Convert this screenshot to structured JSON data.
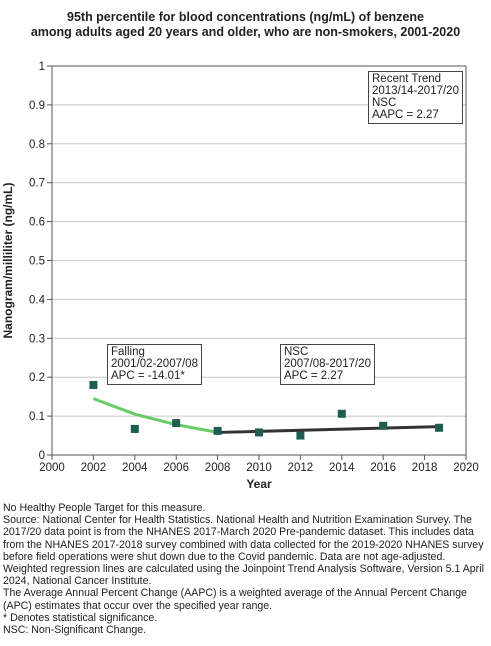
{
  "title_lines": [
    "95th percentile for blood concentrations (ng/mL) of benzene",
    "among adults aged 20 years and older, who are non-smokers, 2001-2020"
  ],
  "annotations": {
    "recent_trend": [
      "Recent Trend",
      "2013/14-2017/20",
      "NSC",
      "AAPC =  2.27"
    ],
    "falling": [
      "Falling",
      "2001/02-2007/08",
      "APC = -14.01*"
    ],
    "nsc": [
      "NSC",
      "2007/08-2017/20",
      "APC =  2.27"
    ]
  },
  "notes": [
    "No Healthy People Target for this measure.",
    "Source: National Center for Health Statistics. National Health and Nutrition Examination Survey. The 2017/20 data point is from the NHANES 2017-March 2020 Pre-pandemic dataset. This includes data from the NHANES 2017-2018 survey combined with data collected for the 2019-2020 NHANES survey before field operations were shut down due to the Covid pandemic. Data are not age-adjusted.",
    "Weighted regression lines are calculated using the Joinpoint Trend Analysis Software, Version 5.1 April 2024, National Cancer Institute.",
    "The Average Annual Percent Change (AAPC) is a weighted average of the Annual Percent Change (APC) estimates that occur over the specified year range.",
    "* Denotes statistical significance.",
    "NSC: Non-Significant Change."
  ],
  "chart_data": {
    "type": "scatter",
    "title": "95th percentile for blood concentrations (ng/mL) of benzene among adults aged 20 years and older, who are non-smokers, 2001-2020",
    "xlabel": "Year",
    "ylabel": "Nanogram/milliliter (ng/mL)",
    "xlim": [
      2000,
      2020
    ],
    "ylim": [
      0,
      1
    ],
    "xticks": [
      2000,
      2002,
      2004,
      2006,
      2008,
      2010,
      2012,
      2014,
      2016,
      2018,
      2020
    ],
    "yticks": [
      0,
      0.1,
      0.2,
      0.3,
      0.4,
      0.5,
      0.6,
      0.7,
      0.8,
      0.9,
      1
    ],
    "grid": true,
    "points": {
      "color": "#1f5c52",
      "x": [
        2002,
        2004,
        2006,
        2008,
        2010,
        2012,
        2014,
        2016,
        2018.7
      ],
      "y": [
        0.18,
        0.067,
        0.082,
        0.062,
        0.058,
        0.05,
        0.106,
        0.075,
        0.07
      ]
    },
    "trend_segments": [
      {
        "label": "Falling",
        "color": "#66cc66",
        "x": [
          2002,
          2004,
          2006,
          2008
        ],
        "y": [
          0.145,
          0.105,
          0.078,
          0.058
        ]
      },
      {
        "label": "NSC",
        "color": "#333333",
        "x": [
          2008,
          2018.7
        ],
        "y": [
          0.058,
          0.073
        ]
      }
    ]
  }
}
